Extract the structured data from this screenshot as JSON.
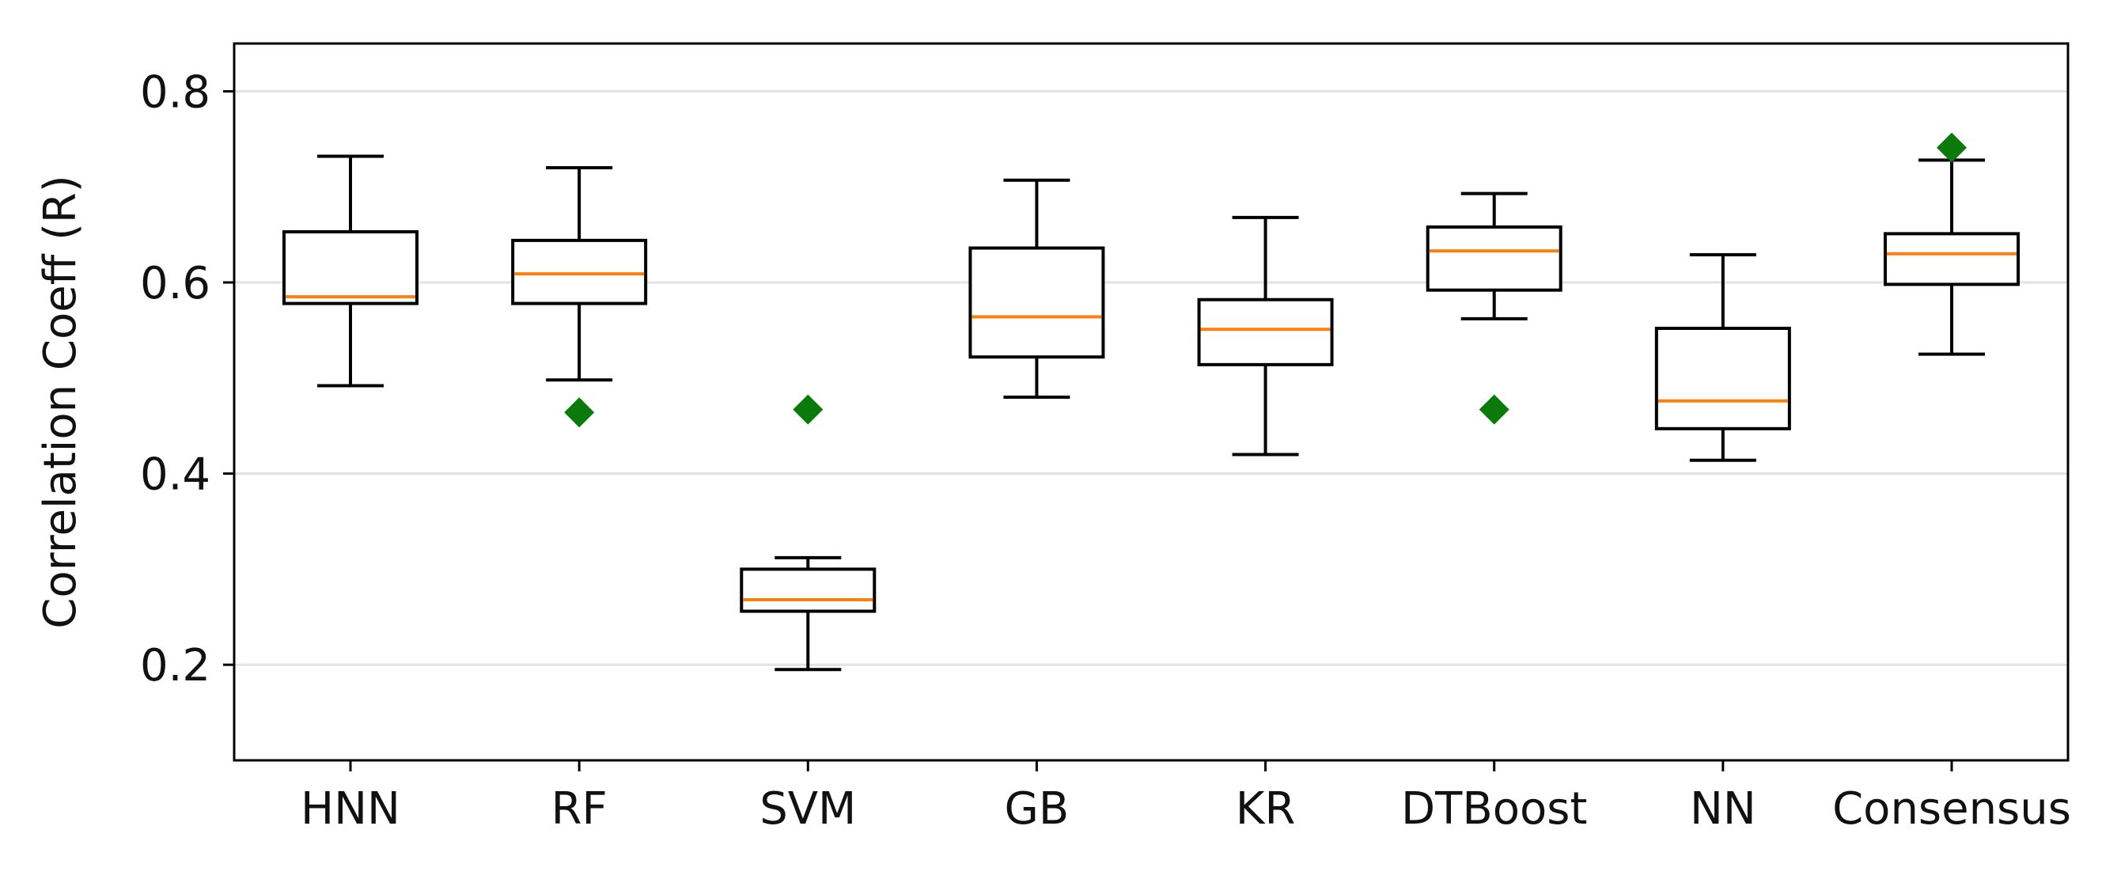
{
  "chart_data": {
    "type": "box",
    "title": "",
    "xlabel": "",
    "ylabel": "Correlation Coeff (R)",
    "ylim": [
      0.1,
      0.85
    ],
    "yticks": [
      0.2,
      0.4,
      0.6,
      0.8
    ],
    "ytick_labels": [
      "0.2",
      "0.4",
      "0.6",
      "0.8"
    ],
    "grid": "horizontal",
    "categories": [
      "HNN",
      "RF",
      "SVM",
      "GB",
      "KR",
      "DTBoost",
      "NN",
      "Consensus"
    ],
    "boxes": [
      {
        "category": "HNN",
        "whisker_low": 0.492,
        "q1": 0.578,
        "median": 0.585,
        "q3": 0.653,
        "whisker_high": 0.732
      },
      {
        "category": "RF",
        "whisker_low": 0.498,
        "q1": 0.578,
        "median": 0.609,
        "q3": 0.644,
        "whisker_high": 0.72
      },
      {
        "category": "SVM",
        "whisker_low": 0.195,
        "q1": 0.256,
        "median": 0.268,
        "q3": 0.3,
        "whisker_high": 0.312
      },
      {
        "category": "GB",
        "whisker_low": 0.48,
        "q1": 0.522,
        "median": 0.564,
        "q3": 0.636,
        "whisker_high": 0.707
      },
      {
        "category": "KR",
        "whisker_low": 0.42,
        "q1": 0.514,
        "median": 0.551,
        "q3": 0.582,
        "whisker_high": 0.668
      },
      {
        "category": "DTBoost",
        "whisker_low": 0.562,
        "q1": 0.592,
        "median": 0.633,
        "q3": 0.658,
        "whisker_high": 0.693
      },
      {
        "category": "NN",
        "whisker_low": 0.414,
        "q1": 0.447,
        "median": 0.476,
        "q3": 0.552,
        "whisker_high": 0.629
      },
      {
        "category": "Consensus",
        "whisker_low": 0.525,
        "q1": 0.598,
        "median": 0.63,
        "q3": 0.651,
        "whisker_high": 0.728
      }
    ],
    "markers": [
      {
        "category": "RF",
        "value": 0.464
      },
      {
        "category": "SVM",
        "value": 0.467
      },
      {
        "category": "DTBoost",
        "value": 0.467
      },
      {
        "category": "Consensus",
        "value": 0.741
      }
    ],
    "colors": {
      "box": "#000000",
      "median": "#ff7f0e",
      "marker": "#0a7a0a",
      "grid": "#e2e2e2"
    }
  }
}
